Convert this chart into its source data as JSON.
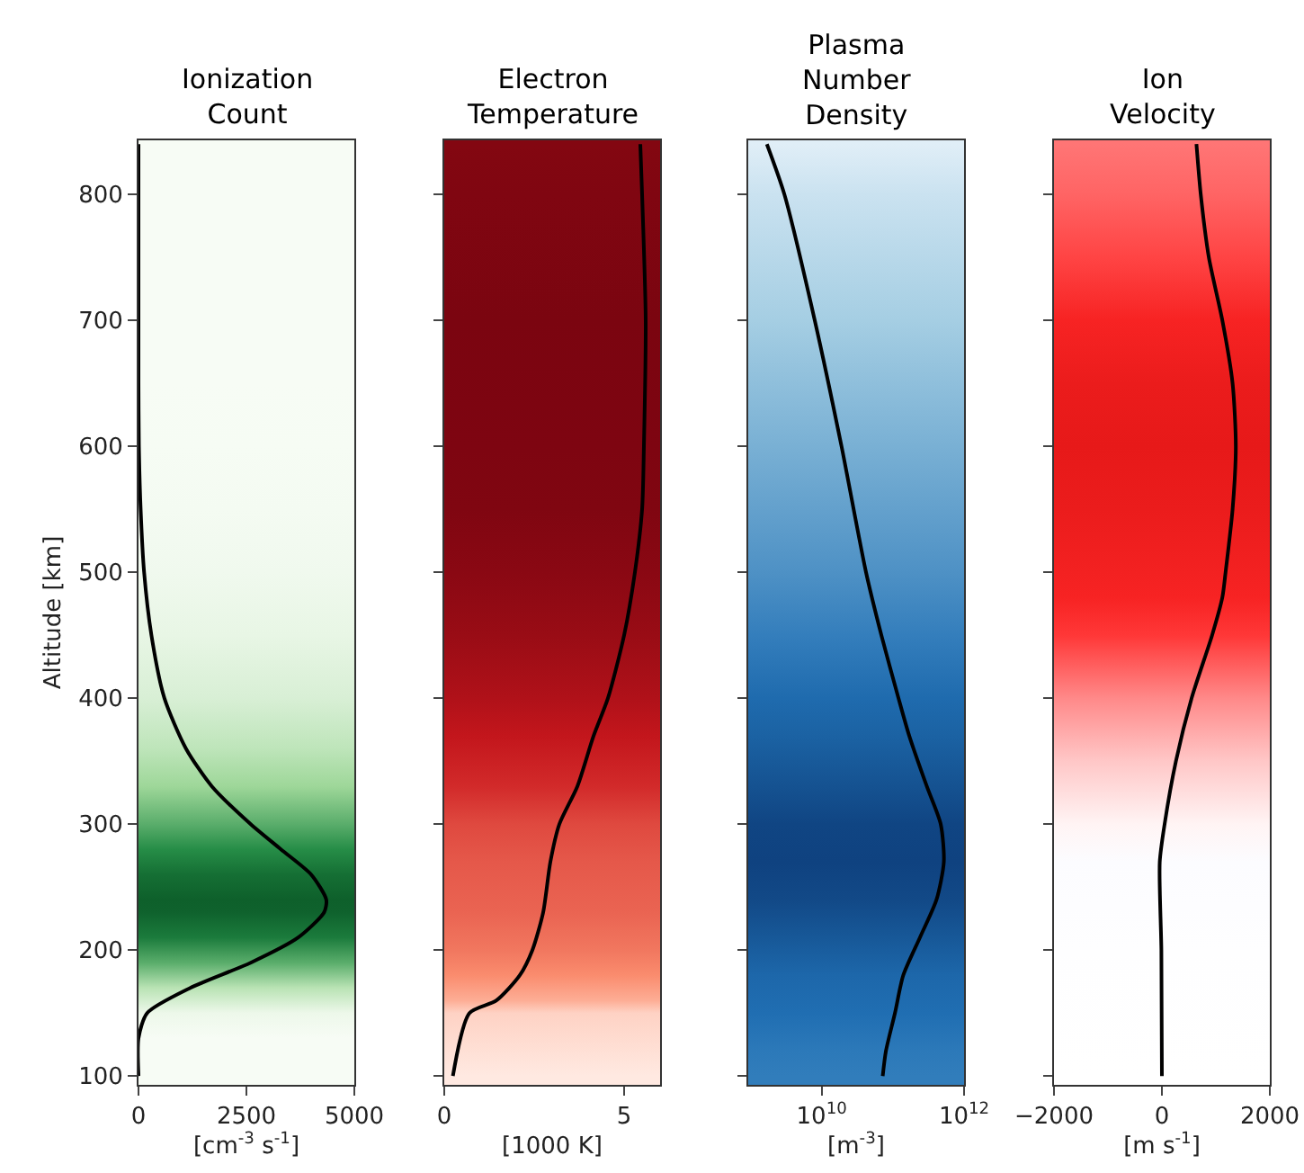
{
  "chart_data": [
    {
      "type": "line",
      "title": "Ionization\nCount",
      "xlabel": "[cm$^{-3}$ s$^{-1}$]",
      "ylabel": "Altitude [km]",
      "xlim": [
        0,
        5000
      ],
      "xticks": [
        0,
        2500,
        5000
      ],
      "ylim": [
        93,
        843
      ],
      "yticks": [
        100,
        200,
        300,
        400,
        500,
        600,
        700,
        800
      ],
      "series": [
        {
          "color": "#000000",
          "x": [
            0,
            0,
            200,
            1200,
            2600,
            3700,
            4300,
            4350,
            4000,
            3300,
            2600,
            1700,
            1100,
            600,
            300,
            130,
            50,
            10,
            0,
            0
          ],
          "values": [
            100,
            130,
            150,
            170,
            190,
            210,
            230,
            240,
            260,
            280,
            300,
            330,
            360,
            400,
            450,
            500,
            550,
            600,
            650,
            840
          ]
        }
      ]
    },
    {
      "type": "line",
      "title": "Electron\nTemperature",
      "xlabel": "[1000 K]",
      "xlim": [
        0,
        6
      ],
      "xticks": [
        0,
        5
      ],
      "ylim": [
        93,
        843
      ],
      "yticks": [
        {
          "value": 100,
          "label": null
        },
        {
          "value": 200,
          "label": null
        },
        {
          "value": 300,
          "label": null
        },
        {
          "value": 400,
          "label": null
        },
        {
          "value": 500,
          "label": null
        },
        {
          "value": 600,
          "label": null
        },
        {
          "value": 700,
          "label": null
        },
        {
          "value": 800,
          "label": null
        }
      ],
      "tick_labels": "x",
      "series": [
        {
          "color": "#000000",
          "x": [
            0.24,
            0.7,
            1.45,
            2.1,
            2.45,
            2.75,
            2.95,
            3.2,
            3.7,
            4.15,
            4.55,
            5.0,
            5.3,
            5.5,
            5.55,
            5.6,
            5.5,
            5.45
          ],
          "values": [
            100,
            150,
            160,
            180,
            200,
            230,
            270,
            300,
            330,
            370,
            400,
            450,
            500,
            550,
            600,
            700,
            800,
            840
          ]
        }
      ]
    },
    {
      "type": "line",
      "title": "Plasma\nNumber\nDensity",
      "xlabel": "[m$^{-3}$]",
      "log": "x",
      "xlim": [
        930000000,
        1000000000000
      ],
      "xticks": [
        {
          "value": 10000000000,
          "label": "10$^{10}$"
        },
        {
          "value": 1000000000000,
          "label": "10$^{12}$"
        }
      ],
      "ylim": [
        93,
        843
      ],
      "yticks": [
        {
          "value": 100,
          "label": null
        },
        {
          "value": 200,
          "label": null
        },
        {
          "value": 300,
          "label": null
        },
        {
          "value": 400,
          "label": null
        },
        {
          "value": 500,
          "label": null
        },
        {
          "value": 600,
          "label": null
        },
        {
          "value": 700,
          "label": null
        },
        {
          "value": 800,
          "label": null
        }
      ],
      "tick_labels": "x",
      "series": [
        {
          "color": "#000000",
          "x": [
            72000000000,
            80000000000,
            107000000000,
            140000000000,
            240000000000,
            410000000000,
            520000000000,
            470000000000,
            300000000000,
            170000000000,
            120000000000,
            69000000000,
            42000000000,
            19000000000,
            8000000000,
            3000000000,
            1700000000
          ],
          "values": [
            100,
            120,
            150,
            180,
            210,
            240,
            270,
            300,
            330,
            370,
            400,
            450,
            500,
            600,
            700,
            800,
            840
          ]
        }
      ]
    },
    {
      "type": "line",
      "title": "Ion\nVelocity",
      "xlabel": "[m s$^{-1}$]",
      "xlim": [
        -2000,
        2000
      ],
      "xticks": [
        {
          "value": -2000,
          "label": "−2000"
        },
        0,
        2000
      ],
      "ylim": [
        93,
        843
      ],
      "yticks": [
        {
          "value": 100,
          "label": null
        },
        {
          "value": 200,
          "label": null
        },
        {
          "value": 300,
          "label": null
        },
        {
          "value": 400,
          "label": null
        },
        {
          "value": 500,
          "label": null
        },
        {
          "value": 600,
          "label": null
        },
        {
          "value": 700,
          "label": null
        },
        {
          "value": 800,
          "label": null
        }
      ],
      "tick_labels": "x",
      "series": [
        {
          "color": "#000000",
          "x": [
            0,
            -10,
            -40,
            50,
            260,
            550,
            930,
            1120,
            1180,
            1310,
            1370,
            1310,
            1120,
            870,
            720,
            640
          ],
          "values": [
            100,
            200,
            270,
            300,
            350,
            400,
            450,
            480,
            500,
            550,
            600,
            650,
            700,
            750,
            800,
            840
          ]
        }
      ]
    }
  ]
}
